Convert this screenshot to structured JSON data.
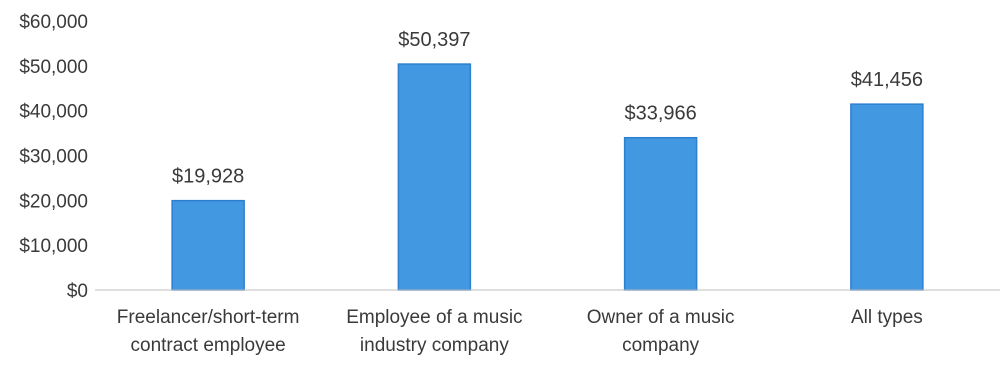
{
  "chart_data": {
    "type": "bar",
    "categories": [
      [
        "Freelancer/short-term",
        "contract employee"
      ],
      [
        "Employee of a music",
        "industry company"
      ],
      [
        "Owner of a music",
        "company"
      ],
      [
        "All types"
      ]
    ],
    "values": [
      19928,
      50397,
      33966,
      41456
    ],
    "value_labels": [
      "$19,928",
      "$50,397",
      "$33,966",
      "$41,456"
    ],
    "y_ticks": [
      0,
      10000,
      20000,
      30000,
      40000,
      50000,
      60000
    ],
    "y_tick_labels": [
      "$0",
      "$10,000",
      "$20,000",
      "$30,000",
      "$40,000",
      "$50,000",
      "$60,000"
    ],
    "ylim": [
      0,
      60000
    ],
    "grid": false,
    "legend": "none",
    "bar_color": "#4299e1",
    "bar_edge_color": "#2f7fd0",
    "axis_color": "#bfbfbf"
  }
}
